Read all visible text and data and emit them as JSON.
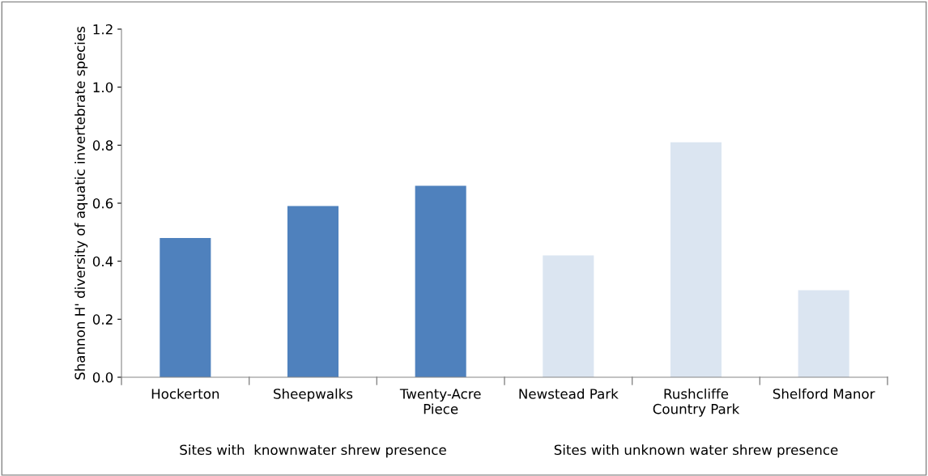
{
  "chart_data": {
    "type": "bar",
    "ylabel": "Shannon H' diversity of aquatic invertebrate species",
    "categories": [
      "Hockerton",
      "Sheepwalks",
      "Twenty-Acre\nPiece",
      "Newstead Park",
      "Rushcliffe\nCountry Park",
      "Shelford Manor"
    ],
    "values": [
      0.48,
      0.59,
      0.66,
      0.42,
      0.81,
      0.3
    ],
    "colors": [
      "#4f81bd",
      "#4f81bd",
      "#4f81bd",
      "#dbe5f1",
      "#dbe5f1",
      "#dbe5f1"
    ],
    "ylim": [
      0,
      1.2
    ],
    "yticks": [
      {
        "value": 0,
        "label": "0.0"
      },
      {
        "value": 0.2,
        "label": "0.2"
      },
      {
        "value": 0.4,
        "label": "0.4"
      },
      {
        "value": 0.6,
        "label": "0.6"
      },
      {
        "value": 0.8,
        "label": "0.8"
      },
      {
        "value": 1.0,
        "label": "1.0"
      },
      {
        "value": 1.2,
        "label": "1.2"
      }
    ],
    "annotations": [
      "Sites with  knownwater shrew presence",
      "Sites with unknown water shrew presence"
    ],
    "grid": false,
    "legend": false
  }
}
